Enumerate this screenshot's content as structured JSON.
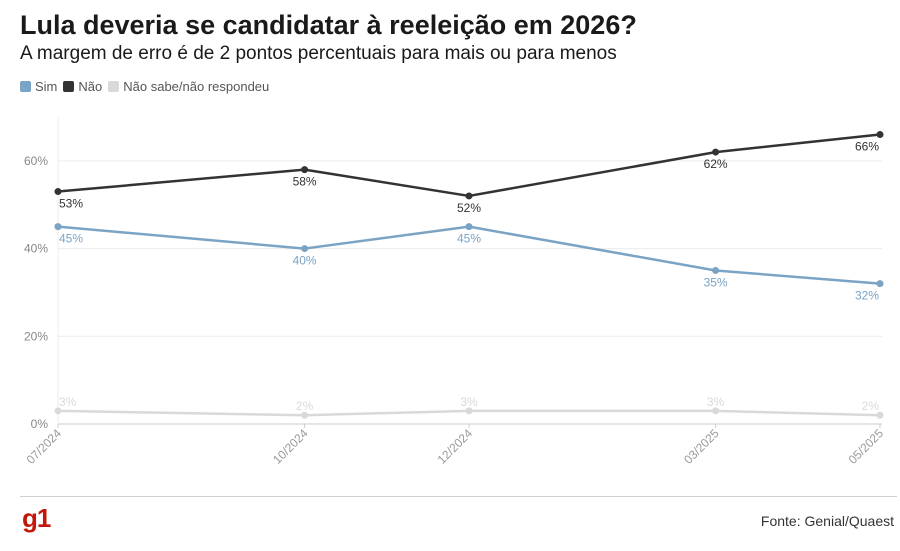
{
  "header": {
    "title": "Lula deveria se candidatar à reeleição em 2026?",
    "subtitle": "A margem de erro é de 2 pontos percentuais para mais ou para menos"
  },
  "legend": [
    {
      "label": "Sim",
      "color": "#7aa3c4"
    },
    {
      "label": "Não",
      "color": "#333333"
    },
    {
      "label": "Não sabe/não respondeu",
      "color": "#d9d9d9"
    }
  ],
  "footer": {
    "logo": "g1",
    "source": "Fonte: Genial/Quaest"
  },
  "chart_data": {
    "type": "line",
    "x": [
      "07/2024",
      "10/2024",
      "12/2024",
      "03/2025",
      "05/2025"
    ],
    "x_dates": [
      "2024-07",
      "2024-10",
      "2024-12",
      "2025-03",
      "2025-05"
    ],
    "ylim": [
      0,
      70
    ],
    "yticks": [
      0,
      20,
      40,
      60
    ],
    "ytick_labels": [
      "0%",
      "20%",
      "40%",
      "60%"
    ],
    "grid": true,
    "series": [
      {
        "name": "Sim",
        "color": "#7aa3c4",
        "values": [
          45,
          40,
          45,
          35,
          32
        ],
        "labels": [
          "45%",
          "40%",
          "45%",
          "35%",
          "32%"
        ]
      },
      {
        "name": "Não",
        "color": "#333333",
        "values": [
          53,
          58,
          52,
          62,
          66
        ],
        "labels": [
          "53%",
          "58%",
          "52%",
          "62%",
          "66%"
        ]
      },
      {
        "name": "Não sabe/não respondeu",
        "color": "#d9d9d9",
        "values": [
          3,
          2,
          3,
          3,
          2
        ],
        "labels": [
          "3%",
          "2%",
          "3%",
          "3%",
          "2%"
        ]
      }
    ]
  }
}
